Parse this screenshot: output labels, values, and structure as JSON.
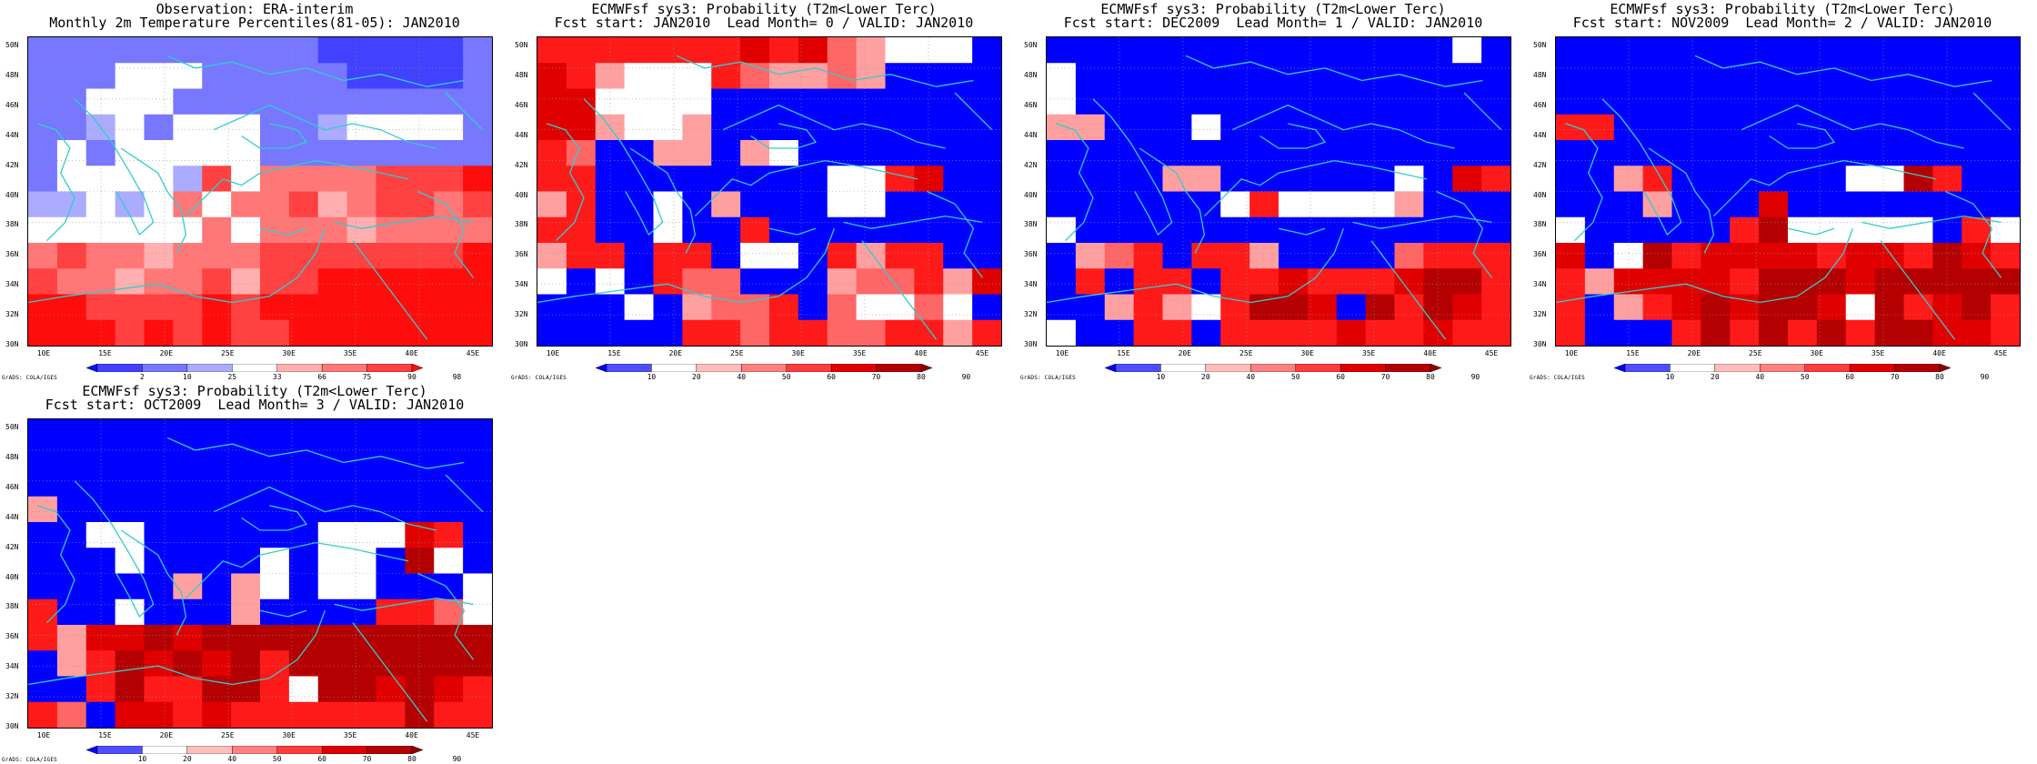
{
  "credit": "GrADS: COLA/IGES",
  "y_ticks": [
    "50N",
    "48N",
    "46N",
    "44N",
    "42N",
    "40N",
    "38N",
    "36N",
    "34N",
    "32N",
    "30N"
  ],
  "x_ticks": [
    "10E",
    "15E",
    "20E",
    "25E",
    "30E",
    "35E",
    "40E",
    "45E"
  ],
  "colors": {
    "level_obs": [
      "#0d0dff",
      "#4141ff",
      "#7777ff",
      "#ababff",
      "#ffffff",
      "#ffafaf",
      "#ff7777",
      "#ff4141",
      "#ff0d0d"
    ],
    "level_prob": [
      "#0000ff",
      "#ffffff",
      "#ffa0a0",
      "#ff6666",
      "#ff1a1a",
      "#e00000",
      "#b40000"
    ],
    "coast": "#33cccc"
  },
  "panels": [
    {
      "id": "obs",
      "title_line1": "Observation: ERA-interim",
      "title_line2": "Monthly 2m Temperature Percentiles(81-05): JAN2010",
      "colorbar_labels": [
        "2",
        "10",
        "25",
        "33",
        "66",
        "75",
        "90",
        "98"
      ],
      "colorbar_type": "obs",
      "grid": [
        [
          2,
          2,
          2,
          2,
          2,
          2,
          2,
          2,
          2,
          2,
          1,
          1,
          1,
          1,
          1,
          2
        ],
        [
          2,
          2,
          2,
          4,
          4,
          4,
          2,
          2,
          2,
          2,
          2,
          1,
          1,
          1,
          1,
          2
        ],
        [
          2,
          2,
          4,
          4,
          4,
          2,
          2,
          2,
          2,
          2,
          2,
          2,
          2,
          2,
          2,
          2
        ],
        [
          2,
          2,
          3,
          4,
          2,
          4,
          4,
          4,
          2,
          2,
          3,
          4,
          4,
          4,
          4,
          2
        ],
        [
          2,
          4,
          2,
          4,
          4,
          4,
          4,
          4,
          2,
          2,
          2,
          2,
          2,
          2,
          2,
          2
        ],
        [
          2,
          4,
          4,
          4,
          4,
          3,
          7,
          4,
          6,
          6,
          6,
          6,
          7,
          7,
          7,
          8
        ],
        [
          3,
          3,
          4,
          3,
          4,
          6,
          4,
          6,
          6,
          7,
          5,
          6,
          7,
          7,
          6,
          7
        ],
        [
          4,
          4,
          4,
          4,
          4,
          4,
          6,
          4,
          6,
          6,
          6,
          5,
          6,
          6,
          6,
          6
        ],
        [
          6,
          7,
          6,
          6,
          5,
          6,
          6,
          6,
          7,
          7,
          7,
          7,
          7,
          7,
          7,
          8
        ],
        [
          7,
          6,
          6,
          5,
          6,
          6,
          7,
          5,
          7,
          7,
          8,
          8,
          8,
          8,
          8,
          8
        ],
        [
          8,
          8,
          7,
          7,
          7,
          7,
          8,
          7,
          8,
          8,
          8,
          8,
          8,
          8,
          8,
          8
        ],
        [
          8,
          8,
          8,
          7,
          8,
          7,
          8,
          7,
          7,
          8,
          8,
          8,
          8,
          8,
          8,
          8
        ]
      ]
    },
    {
      "id": "lead0",
      "title_line1": "ECMWFsf sys3: Probability (T2m<Lower Terc)",
      "title_line2": "Fcst start: JAN2010  Lead Month= 0 / VALID: JAN2010",
      "colorbar_labels": [
        "10",
        "20",
        "40",
        "50",
        "60",
        "70",
        "80",
        "90"
      ],
      "colorbar_type": "prob",
      "grid": [
        [
          4,
          4,
          4,
          4,
          4,
          4,
          4,
          5,
          4,
          5,
          3,
          2,
          1,
          1,
          1,
          0
        ],
        [
          5,
          4,
          2,
          1,
          1,
          1,
          4,
          3,
          2,
          2,
          3,
          2,
          0,
          0,
          0,
          0
        ],
        [
          5,
          5,
          1,
          1,
          1,
          1,
          0,
          0,
          0,
          0,
          0,
          0,
          0,
          0,
          0,
          0
        ],
        [
          5,
          5,
          2,
          1,
          1,
          2,
          0,
          0,
          0,
          0,
          0,
          0,
          0,
          0,
          0,
          0
        ],
        [
          4,
          3,
          0,
          0,
          2,
          2,
          0,
          2,
          1,
          0,
          0,
          0,
          0,
          0,
          0,
          0
        ],
        [
          4,
          4,
          0,
          0,
          0,
          0,
          0,
          0,
          0,
          0,
          1,
          1,
          4,
          5,
          0,
          0
        ],
        [
          2,
          4,
          0,
          0,
          1,
          0,
          2,
          0,
          0,
          0,
          1,
          1,
          0,
          0,
          0,
          0
        ],
        [
          4,
          4,
          0,
          0,
          1,
          0,
          0,
          4,
          0,
          0,
          0,
          0,
          0,
          0,
          0,
          0
        ],
        [
          2,
          4,
          4,
          0,
          4,
          4,
          0,
          1,
          1,
          0,
          4,
          2,
          4,
          4,
          0,
          0
        ],
        [
          1,
          0,
          1,
          0,
          4,
          3,
          3,
          0,
          0,
          0,
          2,
          3,
          3,
          4,
          2,
          5
        ],
        [
          0,
          0,
          0,
          1,
          0,
          2,
          3,
          3,
          4,
          0,
          3,
          1,
          1,
          3,
          1,
          0
        ],
        [
          0,
          0,
          0,
          0,
          0,
          4,
          4,
          3,
          4,
          4,
          3,
          3,
          4,
          4,
          2,
          4
        ]
      ]
    },
    {
      "id": "lead1",
      "title_line1": "ECMWFsf sys3: Probability (T2m<Lower Terc)",
      "title_line2": "Fcst start: DEC2009  Lead Month= 1 / VALID: JAN2010",
      "colorbar_labels": [
        "10",
        "20",
        "40",
        "50",
        "60",
        "70",
        "80",
        "90"
      ],
      "colorbar_type": "prob",
      "grid": [
        [
          0,
          0,
          0,
          0,
          0,
          0,
          0,
          0,
          0,
          0,
          0,
          0,
          0,
          0,
          1,
          0
        ],
        [
          1,
          0,
          0,
          0,
          0,
          0,
          0,
          0,
          0,
          0,
          0,
          0,
          0,
          0,
          0,
          0
        ],
        [
          1,
          0,
          0,
          0,
          0,
          0,
          0,
          0,
          0,
          0,
          0,
          0,
          0,
          0,
          0,
          0
        ],
        [
          2,
          2,
          0,
          0,
          0,
          1,
          0,
          0,
          0,
          0,
          0,
          0,
          0,
          0,
          0,
          0
        ],
        [
          0,
          0,
          0,
          0,
          0,
          0,
          0,
          0,
          0,
          0,
          0,
          0,
          0,
          0,
          0,
          0
        ],
        [
          0,
          0,
          0,
          0,
          2,
          2,
          0,
          0,
          0,
          0,
          0,
          0,
          1,
          0,
          5,
          4
        ],
        [
          0,
          0,
          0,
          0,
          0,
          0,
          1,
          4,
          1,
          1,
          1,
          1,
          2,
          0,
          0,
          0
        ],
        [
          1,
          0,
          0,
          0,
          0,
          0,
          0,
          0,
          0,
          0,
          0,
          0,
          0,
          0,
          0,
          0
        ],
        [
          0,
          2,
          3,
          4,
          0,
          4,
          4,
          2,
          0,
          0,
          0,
          0,
          3,
          4,
          4,
          4
        ],
        [
          0,
          4,
          0,
          4,
          4,
          0,
          4,
          4,
          5,
          4,
          4,
          4,
          5,
          6,
          6,
          4
        ],
        [
          0,
          0,
          2,
          4,
          2,
          1,
          4,
          6,
          6,
          5,
          0,
          6,
          4,
          6,
          5,
          4
        ],
        [
          1,
          0,
          0,
          4,
          4,
          0,
          4,
          4,
          4,
          4,
          5,
          4,
          4,
          5,
          4,
          4
        ]
      ]
    },
    {
      "id": "lead2",
      "title_line1": "ECMWFsf sys3: Probability (T2m<Lower Terc)",
      "title_line2": "Fcst start: NOV2009  Lead Month= 2 / VALID: JAN2010",
      "colorbar_labels": [
        "10",
        "20",
        "40",
        "50",
        "60",
        "70",
        "80",
        "90"
      ],
      "colorbar_type": "prob",
      "grid": [
        [
          0,
          0,
          0,
          0,
          0,
          0,
          0,
          0,
          0,
          0,
          0,
          0,
          0,
          0,
          0,
          0
        ],
        [
          0,
          0,
          0,
          0,
          0,
          0,
          0,
          0,
          0,
          0,
          0,
          0,
          0,
          0,
          0,
          0
        ],
        [
          0,
          0,
          0,
          0,
          0,
          0,
          0,
          0,
          0,
          0,
          0,
          0,
          0,
          0,
          0,
          0
        ],
        [
          4,
          4,
          0,
          0,
          0,
          0,
          0,
          0,
          0,
          0,
          0,
          0,
          0,
          0,
          0,
          0
        ],
        [
          0,
          0,
          0,
          0,
          0,
          0,
          0,
          0,
          0,
          0,
          0,
          0,
          0,
          0,
          0,
          0
        ],
        [
          0,
          0,
          2,
          4,
          0,
          0,
          0,
          0,
          0,
          0,
          1,
          1,
          6,
          4,
          0,
          0
        ],
        [
          0,
          0,
          0,
          2,
          0,
          0,
          0,
          5,
          0,
          0,
          0,
          0,
          0,
          0,
          0,
          0
        ],
        [
          1,
          0,
          0,
          0,
          0,
          0,
          4,
          6,
          1,
          1,
          1,
          1,
          1,
          0,
          4,
          1
        ],
        [
          5,
          0,
          1,
          6,
          4,
          5,
          5,
          5,
          5,
          4,
          5,
          5,
          4,
          6,
          5,
          4
        ],
        [
          4,
          2,
          5,
          5,
          5,
          5,
          4,
          6,
          6,
          6,
          5,
          6,
          6,
          6,
          6,
          6
        ],
        [
          4,
          0,
          2,
          4,
          5,
          6,
          5,
          6,
          6,
          5,
          1,
          6,
          4,
          5,
          6,
          4
        ],
        [
          4,
          0,
          0,
          0,
          4,
          6,
          4,
          6,
          4,
          6,
          4,
          6,
          6,
          5,
          5,
          4
        ]
      ]
    },
    {
      "id": "lead3",
      "title_line1": "ECMWFsf sys3: Probability (T2m<Lower Terc)",
      "title_line2": "Fcst start: OCT2009  Lead Month= 3 / VALID: JAN2010",
      "colorbar_labels": [
        "10",
        "20",
        "40",
        "50",
        "60",
        "70",
        "80",
        "90"
      ],
      "colorbar_type": "prob",
      "grid": [
        [
          0,
          0,
          0,
          0,
          0,
          0,
          0,
          0,
          0,
          0,
          0,
          0,
          0,
          0,
          0,
          0
        ],
        [
          0,
          0,
          0,
          0,
          0,
          0,
          0,
          0,
          0,
          0,
          0,
          0,
          0,
          0,
          0,
          0
        ],
        [
          0,
          0,
          0,
          0,
          0,
          0,
          0,
          0,
          0,
          0,
          0,
          0,
          0,
          0,
          0,
          0
        ],
        [
          2,
          0,
          0,
          0,
          0,
          0,
          0,
          0,
          0,
          0,
          0,
          0,
          0,
          0,
          0,
          0
        ],
        [
          0,
          0,
          1,
          1,
          0,
          0,
          0,
          0,
          0,
          0,
          1,
          1,
          1,
          5,
          4,
          0
        ],
        [
          0,
          0,
          0,
          1,
          0,
          0,
          0,
          0,
          1,
          0,
          1,
          1,
          0,
          6,
          1,
          0
        ],
        [
          0,
          0,
          0,
          0,
          0,
          2,
          0,
          2,
          1,
          0,
          1,
          1,
          0,
          0,
          0,
          1
        ],
        [
          4,
          0,
          0,
          1,
          0,
          0,
          0,
          2,
          0,
          0,
          0,
          0,
          4,
          4,
          3,
          1
        ],
        [
          4,
          2,
          5,
          5,
          6,
          5,
          6,
          6,
          6,
          6,
          6,
          6,
          6,
          6,
          6,
          6
        ],
        [
          0,
          2,
          4,
          6,
          5,
          6,
          5,
          6,
          4,
          6,
          6,
          6,
          6,
          6,
          6,
          6
        ],
        [
          0,
          0,
          4,
          6,
          4,
          4,
          6,
          6,
          4,
          1,
          6,
          6,
          5,
          6,
          5,
          4
        ],
        [
          4,
          3,
          0,
          5,
          5,
          4,
          5,
          4,
          4,
          4,
          4,
          4,
          4,
          6,
          4,
          4
        ]
      ]
    }
  ]
}
